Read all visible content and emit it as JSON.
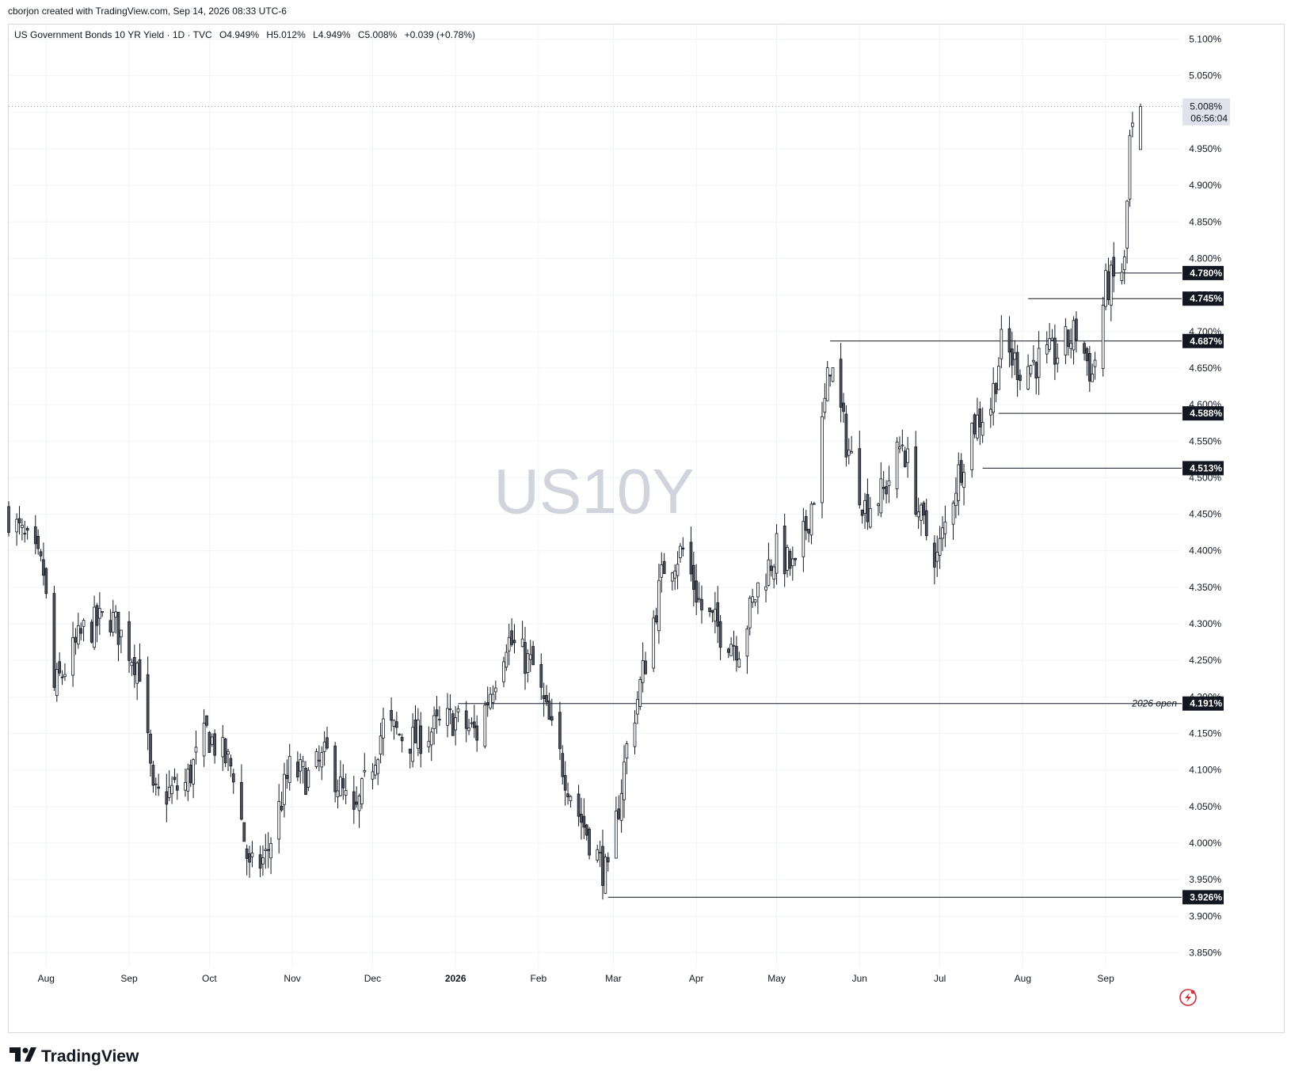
{
  "header": {
    "creator": "cborjon created with TradingView.com, Sep 14, 2026 08:33 UTC-6"
  },
  "legend": {
    "symbol": "US Government Bonds 10 YR Yield · 1D · TVC",
    "open": "O4.949%",
    "high": "H5.012%",
    "low": "L4.949%",
    "close": "C5.008%",
    "change": "+0.039 (+0.78%)"
  },
  "watermark": "US10Y",
  "brand": {
    "name": "TradingView",
    "icon": "tradingview-logo-icon"
  },
  "colors": {
    "candle": "#50535e",
    "wick": "#131722",
    "grid": "#f0f3fa",
    "level_label_bg": "#131722",
    "level_label_text": "#ffffff",
    "watermark": "#d1d4dc",
    "price_tag_bg": "#e0e3eb",
    "flash_icon": "#cc2f3c"
  },
  "chart_data": {
    "type": "candlestick",
    "symbol": "US10Y",
    "interval": "1D",
    "y_unit": "%",
    "ylim": [
      3.83,
      5.12
    ],
    "grid": true,
    "y_ticks": [
      "5.100%",
      "5.050%",
      "5.000%",
      "4.950%",
      "4.900%",
      "4.850%",
      "4.800%",
      "4.750%",
      "4.700%",
      "4.650%",
      "4.600%",
      "4.550%",
      "4.500%",
      "4.450%",
      "4.400%",
      "4.350%",
      "4.300%",
      "4.250%",
      "4.200%",
      "4.150%",
      "4.100%",
      "4.050%",
      "4.000%",
      "3.950%",
      "3.900%",
      "3.850%"
    ],
    "x_ticks": [
      "Aug",
      "Sep",
      "Oct",
      "Nov",
      "Dec",
      "2026",
      "Feb",
      "Mar",
      "Apr",
      "May",
      "Jun",
      "Jul",
      "Aug",
      "Sep"
    ],
    "price_anchors": [
      {
        "date": "2025-07-18",
        "price": 4.45
      },
      {
        "date": "2025-07-31",
        "price": 4.37
      },
      {
        "date": "2025-08-04",
        "price": 4.21
      },
      {
        "date": "2025-08-15",
        "price": 4.29
      },
      {
        "date": "2025-08-25",
        "price": 4.31
      },
      {
        "date": "2025-09-05",
        "price": 4.24
      },
      {
        "date": "2025-09-10",
        "price": 4.06
      },
      {
        "date": "2025-09-22",
        "price": 4.08
      },
      {
        "date": "2025-09-30",
        "price": 4.15
      },
      {
        "date": "2025-10-10",
        "price": 4.1
      },
      {
        "date": "2025-10-16",
        "price": 3.96
      },
      {
        "date": "2025-10-22",
        "price": 3.98
      },
      {
        "date": "2025-10-31",
        "price": 4.1
      },
      {
        "date": "2025-11-07",
        "price": 4.09
      },
      {
        "date": "2025-11-14",
        "price": 4.12
      },
      {
        "date": "2025-11-24",
        "price": 4.03
      },
      {
        "date": "2025-12-05",
        "price": 4.16
      },
      {
        "date": "2025-12-16",
        "price": 4.14
      },
      {
        "date": "2025-12-31",
        "price": 4.17
      },
      {
        "date": "2026-01-09",
        "price": 4.15
      },
      {
        "date": "2026-01-20",
        "price": 4.28
      },
      {
        "date": "2026-01-30",
        "price": 4.24
      },
      {
        "date": "2026-02-06",
        "price": 4.15
      },
      {
        "date": "2026-02-16",
        "price": 4.04
      },
      {
        "date": "2026-02-27",
        "price": 3.95
      },
      {
        "date": "2026-03-06",
        "price": 4.13
      },
      {
        "date": "2026-03-13",
        "price": 4.25
      },
      {
        "date": "2026-03-20",
        "price": 4.38
      },
      {
        "date": "2026-03-27",
        "price": 4.4
      },
      {
        "date": "2026-04-03",
        "price": 4.32
      },
      {
        "date": "2026-04-10",
        "price": 4.29
      },
      {
        "date": "2026-04-17",
        "price": 4.27
      },
      {
        "date": "2026-04-24",
        "price": 4.35
      },
      {
        "date": "2026-05-01",
        "price": 4.4
      },
      {
        "date": "2026-05-08",
        "price": 4.37
      },
      {
        "date": "2026-05-15",
        "price": 4.48
      },
      {
        "date": "2026-05-19",
        "price": 4.6
      },
      {
        "date": "2026-05-21",
        "price": 4.66
      },
      {
        "date": "2026-05-27",
        "price": 4.55
      },
      {
        "date": "2026-06-03",
        "price": 4.46
      },
      {
        "date": "2026-06-10",
        "price": 4.48
      },
      {
        "date": "2026-06-17",
        "price": 4.55
      },
      {
        "date": "2026-06-24",
        "price": 4.44
      },
      {
        "date": "2026-06-30",
        "price": 4.39
      },
      {
        "date": "2026-07-06",
        "price": 4.48
      },
      {
        "date": "2026-07-13",
        "price": 4.57
      },
      {
        "date": "2026-07-20",
        "price": 4.6
      },
      {
        "date": "2026-07-24",
        "price": 4.68
      },
      {
        "date": "2026-07-31",
        "price": 4.65
      },
      {
        "date": "2026-08-07",
        "price": 4.66
      },
      {
        "date": "2026-08-14",
        "price": 4.67
      },
      {
        "date": "2026-08-21",
        "price": 4.7
      },
      {
        "date": "2026-08-27",
        "price": 4.64
      },
      {
        "date": "2026-09-01",
        "price": 4.76
      },
      {
        "date": "2026-09-04",
        "price": 4.77
      },
      {
        "date": "2026-09-08",
        "price": 4.79
      },
      {
        "date": "2026-09-10",
        "price": 4.96
      },
      {
        "date": "2026-09-11",
        "price": 4.97
      },
      {
        "date": "2026-09-14",
        "price": 5.008
      }
    ],
    "levels": [
      {
        "value": 4.78,
        "label": "4.780%",
        "from_date": "2026-09-04",
        "note": ""
      },
      {
        "value": 4.745,
        "label": "4.745%",
        "from_date": "2026-08-03",
        "note": ""
      },
      {
        "value": 4.687,
        "label": "4.687%",
        "from_date": "2026-05-21",
        "note": ""
      },
      {
        "value": 4.588,
        "label": "4.588%",
        "from_date": "2026-07-23",
        "note": ""
      },
      {
        "value": 4.513,
        "label": "4.513%",
        "from_date": "2026-07-17",
        "note": ""
      },
      {
        "value": 4.191,
        "label": "4.191%",
        "from_date": "2026-01-02",
        "note": "2026 open"
      },
      {
        "value": 3.926,
        "label": "3.926%",
        "from_date": "2026-02-27",
        "note": ""
      }
    ],
    "last": {
      "value": 5.008,
      "label": "5.008%",
      "countdown": "06:56:04"
    }
  }
}
